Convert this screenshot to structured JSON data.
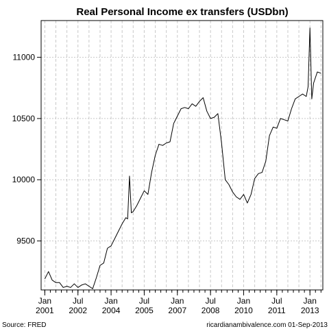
{
  "chart_data": {
    "type": "line",
    "title": "Real Personal Income ex transfers (USDbn)",
    "xlabel": "",
    "ylabel": "",
    "xlim": [
      "2000-11",
      "2013-08"
    ],
    "ylim": [
      9100,
      11300
    ],
    "yticks": [
      9500,
      10000,
      10500,
      11000
    ],
    "grid": true,
    "xticks": [
      {
        "date": "2001-01",
        "label_top": "Jan",
        "label_bottom": "2001"
      },
      {
        "date": "2002-07",
        "label_top": "Jul",
        "label_bottom": "2002"
      },
      {
        "date": "2004-01",
        "label_top": "Jan",
        "label_bottom": "2004"
      },
      {
        "date": "2005-07",
        "label_top": "Jul",
        "label_bottom": "2005"
      },
      {
        "date": "2007-01",
        "label_top": "Jan",
        "label_bottom": "2007"
      },
      {
        "date": "2008-07",
        "label_top": "Jul",
        "label_bottom": "2008"
      },
      {
        "date": "2010-01",
        "label_top": "Jan",
        "label_bottom": "2010"
      },
      {
        "date": "2011-07",
        "label_top": "Jul",
        "label_bottom": "2011"
      },
      {
        "date": "2013-01",
        "label_top": "Jan",
        "label_bottom": "2013"
      }
    ],
    "series": [
      {
        "color": "#000000",
        "points": [
          [
            "2001-01",
            9190
          ],
          [
            "2001-03",
            9250
          ],
          [
            "2001-05",
            9180
          ],
          [
            "2001-07",
            9160
          ],
          [
            "2001-09",
            9160
          ],
          [
            "2001-11",
            9120
          ],
          [
            "2002-01",
            9130
          ],
          [
            "2002-03",
            9120
          ],
          [
            "2002-05",
            9150
          ],
          [
            "2002-07",
            9120
          ],
          [
            "2002-09",
            9140
          ],
          [
            "2002-11",
            9150
          ],
          [
            "2003-01",
            9130
          ],
          [
            "2003-03",
            9110
          ],
          [
            "2003-05",
            9200
          ],
          [
            "2003-07",
            9300
          ],
          [
            "2003-09",
            9320
          ],
          [
            "2003-11",
            9440
          ],
          [
            "2004-01",
            9460
          ],
          [
            "2004-03",
            9520
          ],
          [
            "2004-05",
            9580
          ],
          [
            "2004-07",
            9640
          ],
          [
            "2004-09",
            9690
          ],
          [
            "2004-10",
            9680
          ],
          [
            "2004-11",
            10030
          ],
          [
            "2004-12",
            9730
          ],
          [
            "2005-01",
            9740
          ],
          [
            "2005-03",
            9790
          ],
          [
            "2005-05",
            9850
          ],
          [
            "2005-07",
            9910
          ],
          [
            "2005-09",
            9880
          ],
          [
            "2005-11",
            10060
          ],
          [
            "2006-01",
            10200
          ],
          [
            "2006-03",
            10290
          ],
          [
            "2006-05",
            10280
          ],
          [
            "2006-07",
            10300
          ],
          [
            "2006-09",
            10310
          ],
          [
            "2006-11",
            10460
          ],
          [
            "2007-01",
            10520
          ],
          [
            "2007-03",
            10580
          ],
          [
            "2007-05",
            10590
          ],
          [
            "2007-07",
            10580
          ],
          [
            "2007-09",
            10620
          ],
          [
            "2007-11",
            10600
          ],
          [
            "2008-01",
            10640
          ],
          [
            "2008-03",
            10670
          ],
          [
            "2008-05",
            10560
          ],
          [
            "2008-07",
            10500
          ],
          [
            "2008-09",
            10510
          ],
          [
            "2008-11",
            10540
          ],
          [
            "2009-01",
            10300
          ],
          [
            "2009-03",
            10000
          ],
          [
            "2009-05",
            9960
          ],
          [
            "2009-07",
            9900
          ],
          [
            "2009-09",
            9860
          ],
          [
            "2009-11",
            9840
          ],
          [
            "2010-01",
            9880
          ],
          [
            "2010-03",
            9810
          ],
          [
            "2010-05",
            9880
          ],
          [
            "2010-07",
            10010
          ],
          [
            "2010-09",
            10050
          ],
          [
            "2010-11",
            10060
          ],
          [
            "2011-01",
            10150
          ],
          [
            "2011-03",
            10360
          ],
          [
            "2011-05",
            10430
          ],
          [
            "2011-07",
            10420
          ],
          [
            "2011-09",
            10500
          ],
          [
            "2011-11",
            10490
          ],
          [
            "2012-01",
            10480
          ],
          [
            "2012-03",
            10580
          ],
          [
            "2012-05",
            10660
          ],
          [
            "2012-07",
            10680
          ],
          [
            "2012-09",
            10700
          ],
          [
            "2012-11",
            10680
          ],
          [
            "2012-12",
            10760
          ],
          [
            "2013-01",
            11240
          ],
          [
            "2013-02",
            10660
          ],
          [
            "2013-03",
            10790
          ],
          [
            "2013-05",
            10880
          ],
          [
            "2013-07",
            10870
          ]
        ]
      }
    ]
  },
  "footer": {
    "source": "Source: FRED",
    "credit": "ricardianambivalence.com  01-Sep-2013"
  }
}
